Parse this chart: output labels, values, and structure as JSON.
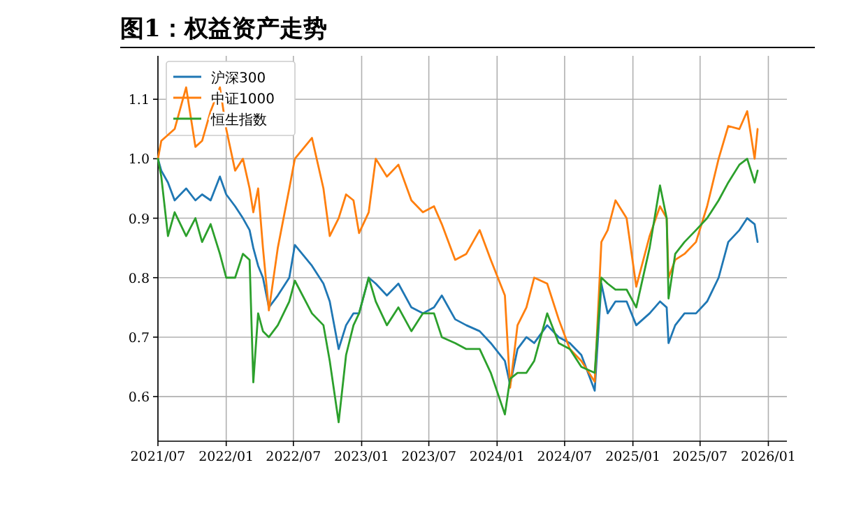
{
  "chart_data": {
    "type": "line",
    "title": "图1：权益资产走势",
    "xlim": [
      "2021-07-01",
      "2026-02-20"
    ],
    "ylim": [
      0.525,
      1.173
    ],
    "xticks": [
      {
        "value": "2021-07-01",
        "label": "2021/07"
      },
      {
        "value": "2022-01-01",
        "label": "2022/01"
      },
      {
        "value": "2022-07-01",
        "label": "2022/07"
      },
      {
        "value": "2023-01-01",
        "label": "2023/01"
      },
      {
        "value": "2023-07-01",
        "label": "2023/07"
      },
      {
        "value": "2024-01-01",
        "label": "2024/01"
      },
      {
        "value": "2024-07-01",
        "label": "2024/07"
      },
      {
        "value": "2025-01-01",
        "label": "2025/01"
      },
      {
        "value": "2025-07-01",
        "label": "2025/07"
      },
      {
        "value": "2026-01-01",
        "label": "2026/01"
      }
    ],
    "yticks": [
      0.6,
      0.7,
      0.8,
      0.9,
      {
        "value": 1.0,
        "label": "1.0"
      },
      1.1
    ],
    "grid": true,
    "legend": "top left",
    "line_style": "solid",
    "marker": "none",
    "x": [
      "2021-07-01",
      "2021-07-10",
      "2021-07-28",
      "2021-08-15",
      "2021-09-15",
      "2021-10-10",
      "2021-10-28",
      "2021-11-20",
      "2021-12-15",
      "2022-01-01",
      "2022-01-25",
      "2022-02-15",
      "2022-03-05",
      "2022-03-15",
      "2022-03-28",
      "2022-04-10",
      "2022-04-26",
      "2022-05-20",
      "2022-06-20",
      "2022-07-05",
      "2022-08-20",
      "2022-09-20",
      "2022-10-07",
      "2022-10-31",
      "2022-11-20",
      "2022-12-10",
      "2022-12-25",
      "2023-01-20",
      "2023-02-08",
      "2023-03-10",
      "2023-04-10",
      "2023-05-15",
      "2023-06-15",
      "2023-07-15",
      "2023-08-05",
      "2023-09-10",
      "2023-10-10",
      "2023-11-15",
      "2023-12-15",
      "2024-01-22",
      "2024-02-05",
      "2024-02-25",
      "2024-03-20",
      "2024-04-10",
      "2024-05-15",
      "2024-06-15",
      "2024-07-15",
      "2024-08-15",
      "2024-09-20",
      "2024-10-08",
      "2024-10-25",
      "2024-11-15",
      "2024-12-15",
      "2025-01-10",
      "2025-02-15",
      "2025-03-15",
      "2025-04-02",
      "2025-04-07",
      "2025-04-25",
      "2025-05-20",
      "2025-06-20",
      "2025-07-20",
      "2025-08-20",
      "2025-09-15",
      "2025-10-15",
      "2025-11-05",
      "2025-11-25",
      "2025-12-03"
    ],
    "series": [
      {
        "name": "沪深300",
        "color": "#1f77b4",
        "values": [
          1.0,
          0.98,
          0.96,
          0.93,
          0.95,
          0.93,
          0.94,
          0.93,
          0.97,
          0.94,
          0.92,
          0.9,
          0.88,
          0.85,
          0.82,
          0.8,
          0.75,
          0.77,
          0.8,
          0.855,
          0.82,
          0.79,
          0.76,
          0.68,
          0.72,
          0.74,
          0.74,
          0.8,
          0.79,
          0.77,
          0.79,
          0.75,
          0.74,
          0.75,
          0.77,
          0.73,
          0.72,
          0.71,
          0.69,
          0.66,
          0.62,
          0.68,
          0.7,
          0.69,
          0.72,
          0.7,
          0.69,
          0.67,
          0.61,
          0.79,
          0.74,
          0.76,
          0.76,
          0.72,
          0.74,
          0.76,
          0.75,
          0.69,
          0.72,
          0.74,
          0.74,
          0.76,
          0.8,
          0.86,
          0.88,
          0.9,
          0.89,
          0.86
        ]
      },
      {
        "name": "中证1000",
        "color": "#ff7f0e",
        "values": [
          1.0,
          1.03,
          1.04,
          1.05,
          1.12,
          1.02,
          1.03,
          1.08,
          1.12,
          1.05,
          0.98,
          1.0,
          0.95,
          0.91,
          0.95,
          0.85,
          0.745,
          0.85,
          0.95,
          1.0,
          1.035,
          0.95,
          0.87,
          0.9,
          0.94,
          0.93,
          0.875,
          0.91,
          1.0,
          0.97,
          0.99,
          0.93,
          0.91,
          0.92,
          0.89,
          0.83,
          0.84,
          0.88,
          0.83,
          0.77,
          0.615,
          0.72,
          0.75,
          0.8,
          0.79,
          0.73,
          0.68,
          0.66,
          0.625,
          0.86,
          0.88,
          0.93,
          0.9,
          0.785,
          0.87,
          0.92,
          0.9,
          0.8,
          0.83,
          0.84,
          0.86,
          0.92,
          1.0,
          1.055,
          1.05,
          1.08,
          1.0,
          1.05
        ]
      },
      {
        "name": "恒生指数",
        "color": "#2ca02c",
        "values": [
          1.0,
          0.97,
          0.87,
          0.91,
          0.87,
          0.9,
          0.86,
          0.89,
          0.84,
          0.8,
          0.8,
          0.84,
          0.83,
          0.624,
          0.74,
          0.71,
          0.7,
          0.72,
          0.76,
          0.795,
          0.74,
          0.72,
          0.66,
          0.557,
          0.67,
          0.72,
          0.74,
          0.8,
          0.76,
          0.72,
          0.75,
          0.71,
          0.74,
          0.74,
          0.7,
          0.69,
          0.68,
          0.68,
          0.64,
          0.57,
          0.63,
          0.64,
          0.64,
          0.66,
          0.74,
          0.69,
          0.68,
          0.65,
          0.64,
          0.8,
          0.79,
          0.78,
          0.78,
          0.75,
          0.85,
          0.955,
          0.9,
          0.765,
          0.84,
          0.86,
          0.88,
          0.9,
          0.93,
          0.96,
          0.99,
          1.0,
          0.96,
          0.98
        ]
      }
    ]
  }
}
